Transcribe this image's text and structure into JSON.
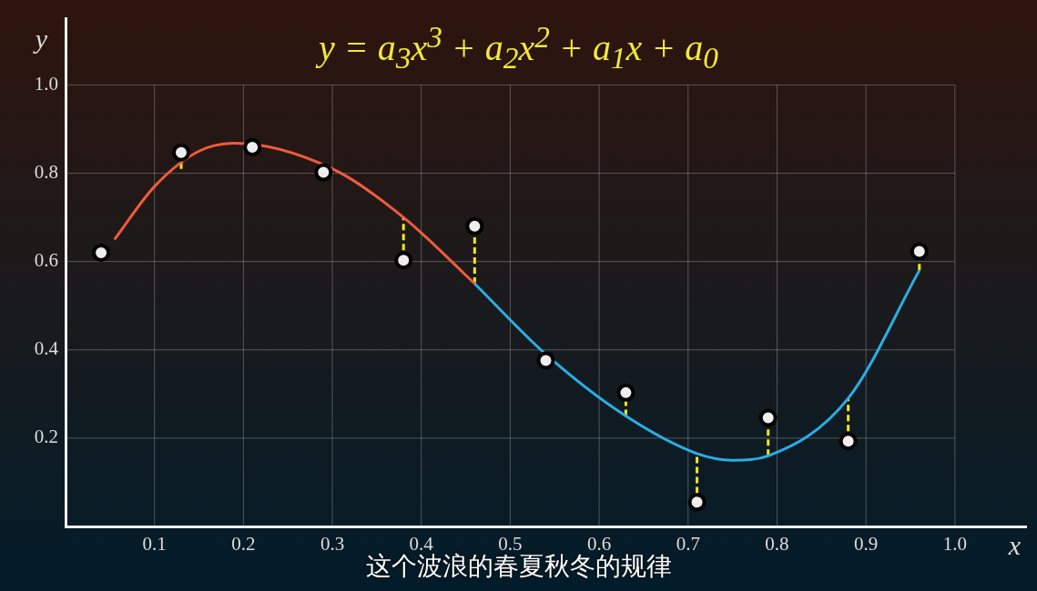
{
  "chart_data": {
    "type": "scatter",
    "title": "y = a$_{3}$x$^{3}$ + a$_{2}$x$^{2}$ + a$_{1}$x + a$_{0}$",
    "xlabel": "x",
    "ylabel": "y",
    "annotations": [
      "这个波浪的春夏秋冬的规律"
    ],
    "xlim": [
      0,
      1.08
    ],
    "ylim": [
      0,
      1.15
    ],
    "xticks": [
      0.1,
      0.2,
      0.3,
      0.4,
      0.5,
      0.6,
      0.7,
      0.8,
      0.9,
      {
        "value": 1,
        "label": "1.0"
      }
    ],
    "yticks": [
      0.2,
      0.4,
      0.6,
      0.8,
      {
        "value": 1,
        "label": "1.0"
      }
    ],
    "grid": true,
    "marker": "circle",
    "series": [
      {
        "type": "line",
        "marker": "none",
        "color": "#ef5b3d",
        "x": [
          0.055,
          0.1,
          0.15,
          0.19,
          0.3,
          0.38,
          0.46
        ],
        "values": [
          0.65,
          0.77,
          0.85,
          0.868,
          0.81,
          0.7,
          0.55
        ]
      },
      {
        "type": "line",
        "marker": "none",
        "color": "#2aaee4",
        "x": [
          0.46,
          0.54,
          0.63,
          0.71,
          0.75,
          0.79,
          0.88,
          0.96
        ],
        "values": [
          0.55,
          0.39,
          0.25,
          0.165,
          0.15,
          0.16,
          0.29,
          0.58
        ]
      },
      {
        "color": "#eeeeee",
        "x": [
          0.04,
          0.13,
          0.21,
          0.29,
          0.38,
          0.46,
          0.54,
          0.63,
          0.71,
          0.79,
          0.88,
          0.96
        ],
        "values": [
          0.62,
          0.847,
          0.859,
          0.802,
          0.603,
          0.68,
          0.376,
          0.303,
          0.055,
          0.246,
          0.193,
          0.623
        ],
        "errors": [
          null,
          [
            0.81,
            0.847
          ],
          null,
          null,
          [
            0.603,
            0.7
          ],
          [
            0.55,
            0.68
          ],
          null,
          [
            0.25,
            0.303
          ],
          [
            0.075,
            0.165
          ],
          [
            0.16,
            0.246
          ],
          [
            0.193,
            0.29
          ],
          [
            0.58,
            0.623
          ]
        ]
      }
    ]
  }
}
